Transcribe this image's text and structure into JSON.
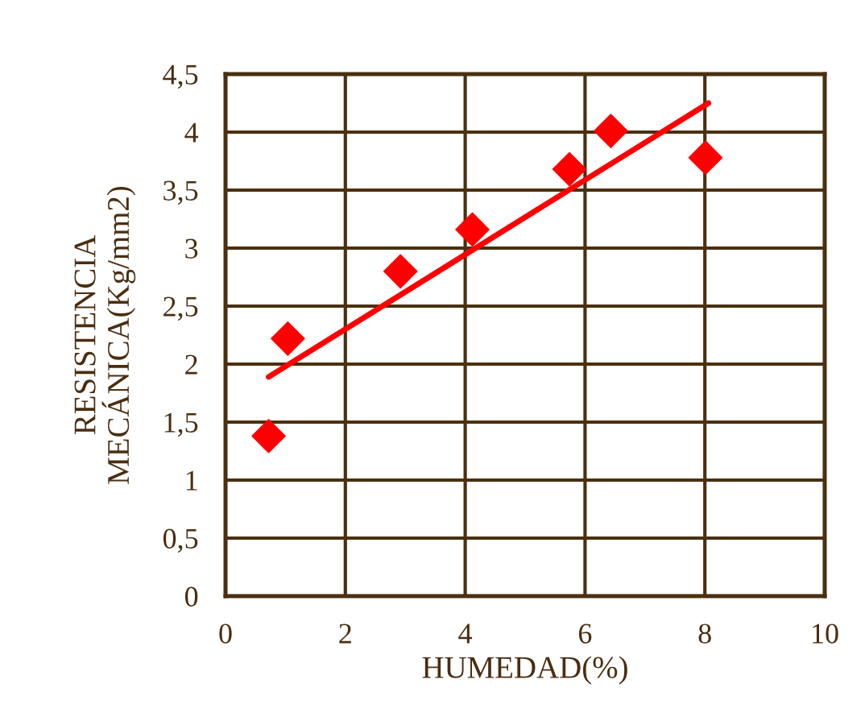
{
  "chart_data": {
    "type": "scatter",
    "xlabel": "HUMEDAD(%)",
    "ylabel": "RESISTENCIA\nMECÁNICA(Kg/mm2)",
    "series": [
      {
        "color": "#ff0000",
        "marker": "diamond",
        "x": [
          0.72,
          1.04,
          2.92,
          4.12,
          5.74,
          6.43,
          8.01
        ],
        "values": [
          1.38,
          2.22,
          2.8,
          3.16,
          3.68,
          4.01,
          3.78
        ]
      },
      {
        "type": "line",
        "color": "#ff0000",
        "marker": "none",
        "line_style": "solid",
        "x": [
          0.72,
          8.06
        ],
        "values": [
          1.89,
          4.25
        ]
      }
    ],
    "xlim": [
      0,
      10
    ],
    "xticks": [
      0,
      2,
      4,
      6,
      8,
      10
    ],
    "ylim": [
      0,
      4.5
    ],
    "yticks": [
      0,
      {
        "value": 0.5,
        "label": "0,5"
      },
      1,
      {
        "value": 1.5,
        "label": "1,5"
      },
      2,
      {
        "value": 2.5,
        "label": "2,5"
      },
      3,
      {
        "value": 3.5,
        "label": "3,5"
      },
      4,
      {
        "value": 4.5,
        "label": "4,5"
      }
    ],
    "grid": true
  }
}
